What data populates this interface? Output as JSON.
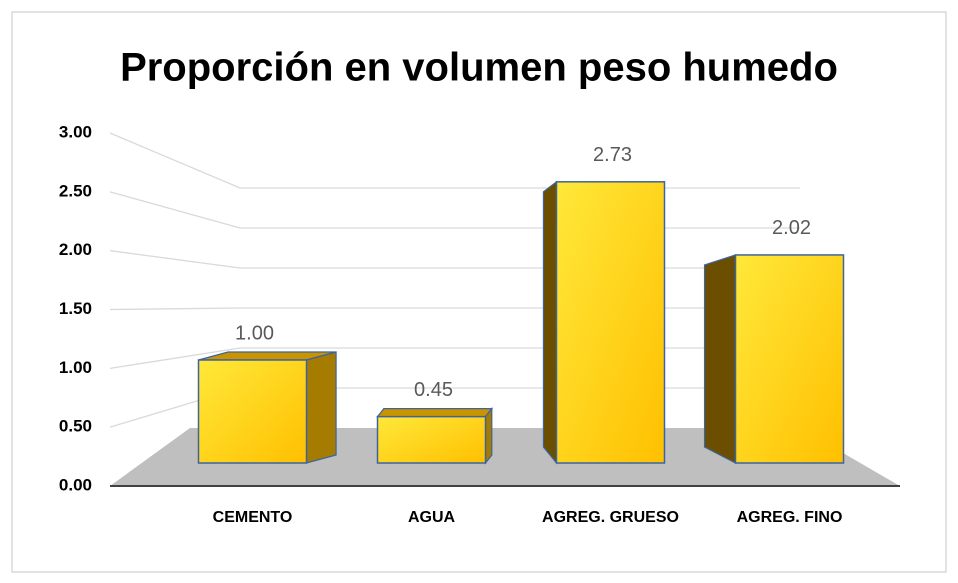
{
  "chart_data": {
    "type": "bar3d",
    "title": "Proporción en volumen peso humedo",
    "categories": [
      "CEMENTO",
      "AGUA",
      "AGREG. GRUESO",
      "AGREG. FINO"
    ],
    "values": [
      1.0,
      0.45,
      2.73,
      2.02
    ],
    "value_labels": [
      "1.00",
      "0.45",
      "2.73",
      "2.02"
    ],
    "color": "#ffc000",
    "ylim": [
      0,
      3
    ],
    "yticks": [
      {
        "value": 0,
        "label": "0.00"
      },
      {
        "value": 0.5,
        "label": "0.50"
      },
      {
        "value": 1,
        "label": "1.00"
      },
      {
        "value": 1.5,
        "label": "1.50"
      },
      {
        "value": 2,
        "label": "2.00"
      },
      {
        "value": 2.5,
        "label": "2.50"
      },
      {
        "value": 3,
        "label": "3.00"
      }
    ],
    "grid": true
  }
}
